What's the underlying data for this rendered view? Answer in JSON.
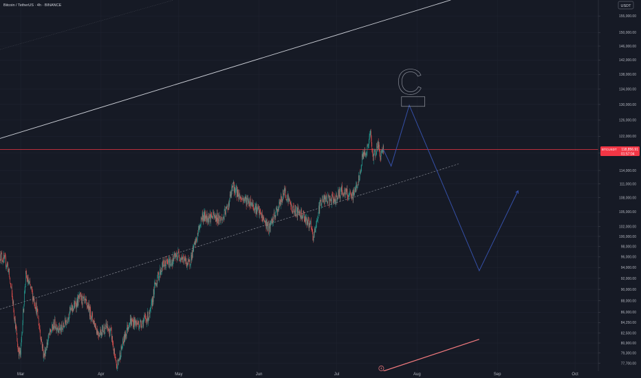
{
  "header": {
    "title": "Bitcoin / TetherUS · 4h · BINANCE",
    "currency_badge": "USDT"
  },
  "price_tag": {
    "symbol": "BTCUSDT",
    "price": "118,856.91",
    "countdown": "01:57:04",
    "value": 118856.91
  },
  "annotations": {
    "wave_label": "C"
  },
  "colors": {
    "background": "#161a25",
    "up": "#26a69a",
    "down": "#ef5350",
    "projection": "#3550a8",
    "trendline": "#d1d4dc",
    "price_line": "#f23645"
  },
  "chart_data": {
    "type": "candlestick",
    "title": "Bitcoin / TetherUS · 4h · BINANCE",
    "xlabel": "",
    "ylabel": "",
    "y_axis": {
      "scale": "log",
      "ylim": [
        76500,
        160000
      ],
      "ticks": [
        "155,000.00",
        "150,000.00",
        "146,000.00",
        "142,000.00",
        "138,000.00",
        "134,000.00",
        "130,000.00",
        "126,000.00",
        "122,000.00",
        "118,000.00",
        "114,000.00",
        "111,000.00",
        "108,000.00",
        "105,000.00",
        "102,000.00",
        "100,000.00",
        "98,000.00",
        "96,000.00",
        "94,000.00",
        "92,000.00",
        "90,000.00",
        "88,000.00",
        "86,000.00",
        "84,250.00",
        "82,500.00",
        "80,900.00",
        "79,300.00",
        "77,700.00"
      ]
    },
    "x_axis": {
      "range": [
        "2025-02-21",
        "2025-10-10"
      ],
      "ticks": [
        {
          "label": "Mar",
          "date": "2025-03-01"
        },
        {
          "label": "Apr",
          "date": "2025-04-01"
        },
        {
          "label": "May",
          "date": "2025-05-01"
        },
        {
          "label": "Jun",
          "date": "2025-06-01"
        },
        {
          "label": "Jul",
          "date": "2025-07-01"
        },
        {
          "label": "Aug",
          "date": "2025-08-01"
        },
        {
          "label": "Sep",
          "date": "2025-09-01"
        },
        {
          "label": "Oct",
          "date": "2025-10-01"
        }
      ]
    },
    "price_path": [
      [
        "2025-02-21",
        96500
      ],
      [
        "2025-02-24",
        94500
      ],
      [
        "2025-02-26",
        88000
      ],
      [
        "2025-02-28",
        80000
      ],
      [
        "2025-03-01",
        79000
      ],
      [
        "2025-03-03",
        92500
      ],
      [
        "2025-03-05",
        90000
      ],
      [
        "2025-03-07",
        87000
      ],
      [
        "2025-03-10",
        78800
      ],
      [
        "2025-03-12",
        82000
      ],
      [
        "2025-03-14",
        84000
      ],
      [
        "2025-03-17",
        83000
      ],
      [
        "2025-03-20",
        86000
      ],
      [
        "2025-03-24",
        88500
      ],
      [
        "2025-03-27",
        87000
      ],
      [
        "2025-03-31",
        82500
      ],
      [
        "2025-04-03",
        83500
      ],
      [
        "2025-04-05",
        82500
      ],
      [
        "2025-04-07",
        76800
      ],
      [
        "2025-04-09",
        80000
      ],
      [
        "2025-04-12",
        84500
      ],
      [
        "2025-04-16",
        84000
      ],
      [
        "2025-04-20",
        85500
      ],
      [
        "2025-04-22",
        91000
      ],
      [
        "2025-04-25",
        94500
      ],
      [
        "2025-04-28",
        95000
      ],
      [
        "2025-05-01",
        96500
      ],
      [
        "2025-05-05",
        94500
      ],
      [
        "2025-05-08",
        99500
      ],
      [
        "2025-05-10",
        104000
      ],
      [
        "2025-05-14",
        104000
      ],
      [
        "2025-05-18",
        103500
      ],
      [
        "2025-05-20",
        106000
      ],
      [
        "2025-05-22",
        110500
      ],
      [
        "2025-05-25",
        108000
      ],
      [
        "2025-05-29",
        107000
      ],
      [
        "2025-06-01",
        105000
      ],
      [
        "2025-06-05",
        101500
      ],
      [
        "2025-06-09",
        106500
      ],
      [
        "2025-06-11",
        109500
      ],
      [
        "2025-06-14",
        105500
      ],
      [
        "2025-06-18",
        104500
      ],
      [
        "2025-06-21",
        102000
      ],
      [
        "2025-06-22",
        99500
      ],
      [
        "2025-06-25",
        107500
      ],
      [
        "2025-06-30",
        107500
      ],
      [
        "2025-07-03",
        109500
      ],
      [
        "2025-07-07",
        108000
      ],
      [
        "2025-07-10",
        112500
      ],
      [
        "2025-07-11",
        117500
      ],
      [
        "2025-07-13",
        119000
      ],
      [
        "2025-07-14",
        123000
      ],
      [
        "2025-07-15",
        117000
      ],
      [
        "2025-07-17",
        120000
      ],
      [
        "2025-07-18",
        117500
      ],
      [
        "2025-07-19",
        118856.91
      ]
    ],
    "projection": [
      [
        "2025-07-19",
        118856.91
      ],
      [
        "2025-07-22",
        115000
      ],
      [
        "2025-07-29",
        129800
      ],
      [
        "2025-08-25",
        93400
      ],
      [
        "2025-09-09",
        109500
      ]
    ],
    "target_box": {
      "date_from": "2025-07-26",
      "date_to": "2025-08-04",
      "price_from": 129500,
      "price_to": 132000
    },
    "trendlines": [
      {
        "style": "solid",
        "from": [
          "2025-02-21",
          121500
        ],
        "to": [
          "2025-08-14",
          160000
        ]
      },
      {
        "style": "dashed",
        "from": [
          "2025-02-21",
          86500
        ],
        "to": [
          "2025-08-17",
          115500
        ]
      },
      {
        "style": "dotted",
        "from": [
          "2025-02-21",
          145000
        ],
        "to": [
          "2025-04-29",
          160000
        ]
      }
    ],
    "bottom_indicator": {
      "from": [
        "2025-07-19",
        76500
      ],
      "to": [
        "2025-08-25",
        81500
      ]
    }
  }
}
